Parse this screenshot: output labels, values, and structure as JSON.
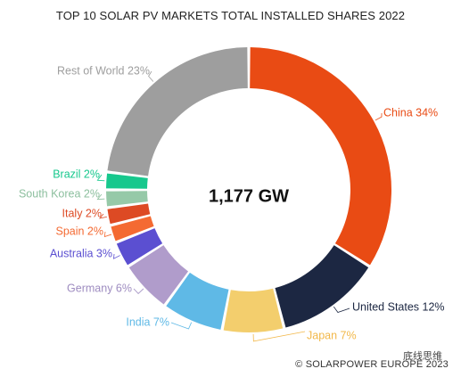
{
  "chart_data": {
    "type": "pie",
    "title": "TOP 10 SOLAR PV MARKETS TOTAL INSTALLED SHARES 2022",
    "center_label": "1,177 GW",
    "slices": [
      {
        "label": "China",
        "value": 34,
        "value_label": "34%",
        "color": "#E94B14"
      },
      {
        "label": "United States",
        "value": 12,
        "value_label": "12%",
        "color": "#1C2742"
      },
      {
        "label": "Japan",
        "value": 7,
        "value_label": "7%",
        "color": "#F3CE6D"
      },
      {
        "label": "India",
        "value": 7,
        "value_label": "7%",
        "color": "#5FB9E6"
      },
      {
        "label": "Germany",
        "value": 6,
        "value_label": "6%",
        "color": "#B09CCB"
      },
      {
        "label": "Australia",
        "value": 3,
        "value_label": "3%",
        "color": "#5B4FD1"
      },
      {
        "label": "Spain",
        "value": 2,
        "value_label": "2%",
        "color": "#F46A32"
      },
      {
        "label": "Italy",
        "value": 2,
        "value_label": "2%",
        "color": "#DD4A24"
      },
      {
        "label": "South Korea",
        "value": 2,
        "value_label": "2%",
        "color": "#96C9A8"
      },
      {
        "label": "Brazil",
        "value": 2,
        "value_label": "2%",
        "color": "#17C88D"
      },
      {
        "label": "Rest of World",
        "value": 23,
        "value_label": "23%",
        "color": "#9E9E9E"
      }
    ],
    "label_colors": {
      "China": "#E94B14",
      "United States": "#1C2742",
      "Japan": "#F2B84A",
      "India": "#5FB9E6",
      "Germany": "#9E8CC0",
      "Australia": "#5B4FD1",
      "Spain": "#F46A32",
      "Italy": "#DD4A24",
      "South Korea": "#8CBF9E",
      "Brazil": "#17C88D",
      "Rest of World": "#9E9E9E"
    }
  },
  "watermark": "底线思维",
  "copyright": "© SOLARPOWER EUROPE 2023"
}
